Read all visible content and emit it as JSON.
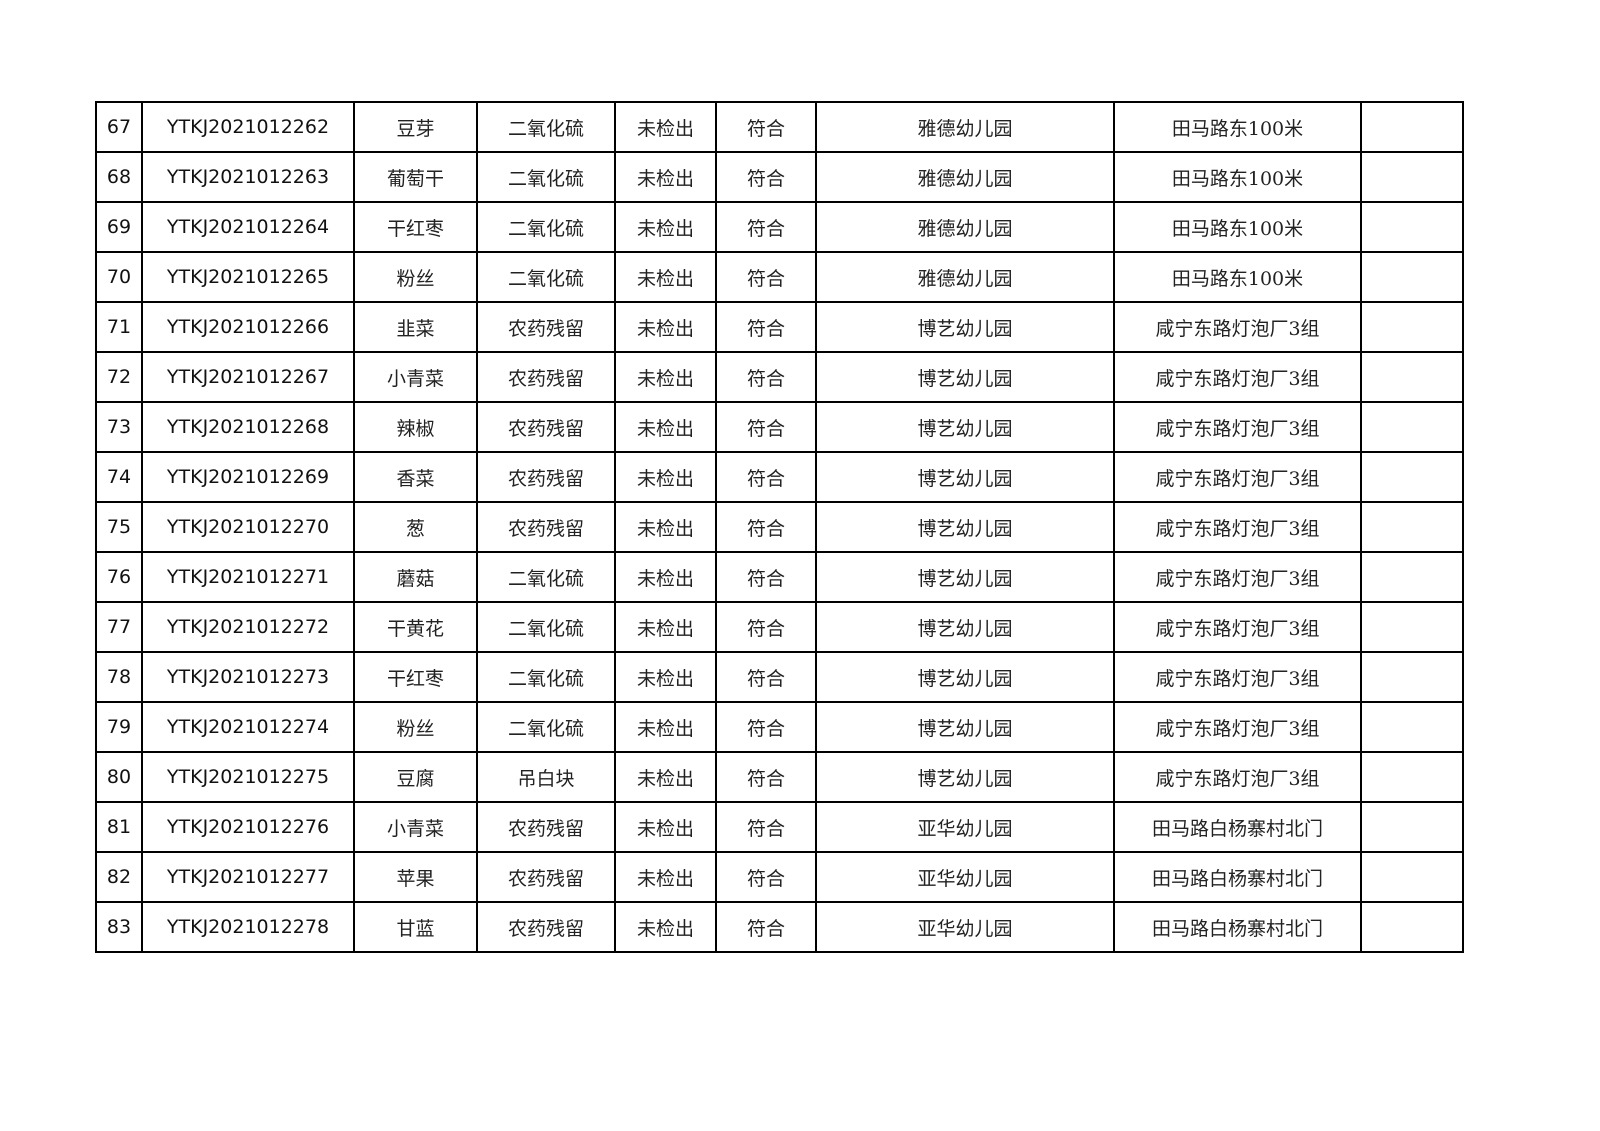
{
  "table": {
    "rows": [
      [
        "67",
        "YTKJ2021012262",
        "豆芽",
        "二氧化硫",
        "未检出",
        "符合",
        "雅德幼儿园",
        "田马路东100米",
        ""
      ],
      [
        "68",
        "YTKJ2021012263",
        "葡萄干",
        "二氧化硫",
        "未检出",
        "符合",
        "雅德幼儿园",
        "田马路东100米",
        ""
      ],
      [
        "69",
        "YTKJ2021012264",
        "干红枣",
        "二氧化硫",
        "未检出",
        "符合",
        "雅德幼儿园",
        "田马路东100米",
        ""
      ],
      [
        "70",
        "YTKJ2021012265",
        "粉丝",
        "二氧化硫",
        "未检出",
        "符合",
        "雅德幼儿园",
        "田马路东100米",
        ""
      ],
      [
        "71",
        "YTKJ2021012266",
        "韭菜",
        "农药残留",
        "未检出",
        "符合",
        "博艺幼儿园",
        "咸宁东路灯泡厂3组",
        ""
      ],
      [
        "72",
        "YTKJ2021012267",
        "小青菜",
        "农药残留",
        "未检出",
        "符合",
        "博艺幼儿园",
        "咸宁东路灯泡厂3组",
        ""
      ],
      [
        "73",
        "YTKJ2021012268",
        "辣椒",
        "农药残留",
        "未检出",
        "符合",
        "博艺幼儿园",
        "咸宁东路灯泡厂3组",
        ""
      ],
      [
        "74",
        "YTKJ2021012269",
        "香菜",
        "农药残留",
        "未检出",
        "符合",
        "博艺幼儿园",
        "咸宁东路灯泡厂3组",
        ""
      ],
      [
        "75",
        "YTKJ2021012270",
        "葱",
        "农药残留",
        "未检出",
        "符合",
        "博艺幼儿园",
        "咸宁东路灯泡厂3组",
        ""
      ],
      [
        "76",
        "YTKJ2021012271",
        "蘑菇",
        "二氧化硫",
        "未检出",
        "符合",
        "博艺幼儿园",
        "咸宁东路灯泡厂3组",
        ""
      ],
      [
        "77",
        "YTKJ2021012272",
        "干黄花",
        "二氧化硫",
        "未检出",
        "符合",
        "博艺幼儿园",
        "咸宁东路灯泡厂3组",
        ""
      ],
      [
        "78",
        "YTKJ2021012273",
        "干红枣",
        "二氧化硫",
        "未检出",
        "符合",
        "博艺幼儿园",
        "咸宁东路灯泡厂3组",
        ""
      ],
      [
        "79",
        "YTKJ2021012274",
        "粉丝",
        "二氧化硫",
        "未检出",
        "符合",
        "博艺幼儿园",
        "咸宁东路灯泡厂3组",
        ""
      ],
      [
        "80",
        "YTKJ2021012275",
        "豆腐",
        "吊白块",
        "未检出",
        "符合",
        "博艺幼儿园",
        "咸宁东路灯泡厂3组",
        ""
      ],
      [
        "81",
        "YTKJ2021012276",
        "小青菜",
        "农药残留",
        "未检出",
        "符合",
        "亚华幼儿园",
        "田马路白杨寨村北门",
        ""
      ],
      [
        "82",
        "YTKJ2021012277",
        "苹果",
        "农药残留",
        "未检出",
        "符合",
        "亚华幼儿园",
        "田马路白杨寨村北门",
        ""
      ],
      [
        "83",
        "YTKJ2021012278",
        "甘蓝",
        "农药残留",
        "未检出",
        "符合",
        "亚华幼儿园",
        "田马路白杨寨村北门",
        ""
      ]
    ]
  }
}
